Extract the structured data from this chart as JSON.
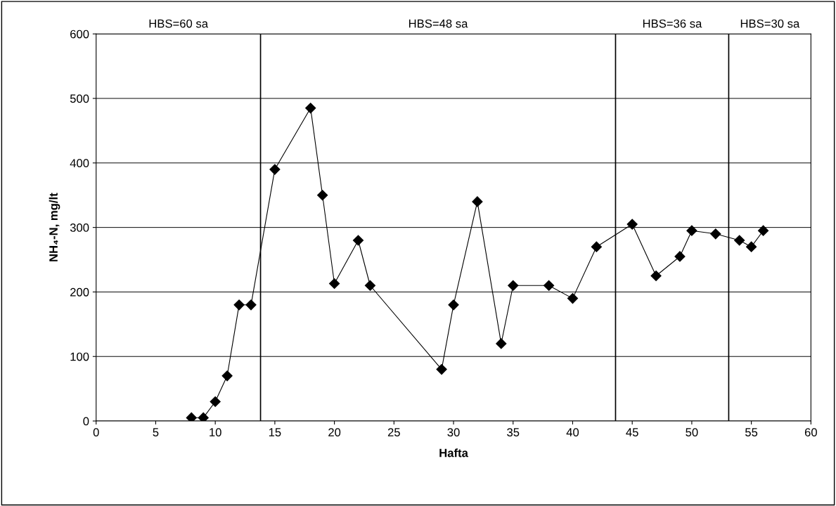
{
  "chart_data": {
    "type": "line",
    "xlabel": "Hafta",
    "ylabel": "NH₄-N, mg/lt",
    "x": [
      8,
      9,
      10,
      11,
      12,
      13,
      15,
      18,
      19,
      20,
      22,
      23,
      29,
      30,
      32,
      34,
      35,
      38,
      40,
      42,
      45,
      47,
      49,
      50,
      52,
      54,
      55,
      56
    ],
    "series": [
      {
        "color": "#000000",
        "values": [
          5,
          5,
          30,
          70,
          180,
          180,
          390,
          485,
          350,
          213,
          280,
          210,
          80,
          180,
          340,
          120,
          210,
          210,
          190,
          270,
          305,
          225,
          255,
          295,
          290,
          280,
          270,
          295
        ]
      }
    ],
    "xlim": [
      0,
      60
    ],
    "xticks": [
      0,
      5,
      10,
      15,
      20,
      25,
      30,
      35,
      40,
      45,
      50,
      55,
      60
    ],
    "ylim": [
      0,
      600
    ],
    "yticks": [
      0,
      100,
      200,
      300,
      400,
      500,
      600
    ],
    "grid": "y",
    "marker": "diamond",
    "line_style": "solid",
    "legend": false,
    "ref_lines": [
      {
        "axis": "x",
        "value": 13.8,
        "color": "#000000"
      },
      {
        "axis": "x",
        "value": 43.6,
        "color": "#000000"
      },
      {
        "axis": "x",
        "value": 53.1,
        "color": "#000000"
      }
    ],
    "annotations": [
      "HBS=60 sa",
      "HBS=48 sa",
      "HBS=36 sa",
      "HBS=30 sa"
    ]
  }
}
